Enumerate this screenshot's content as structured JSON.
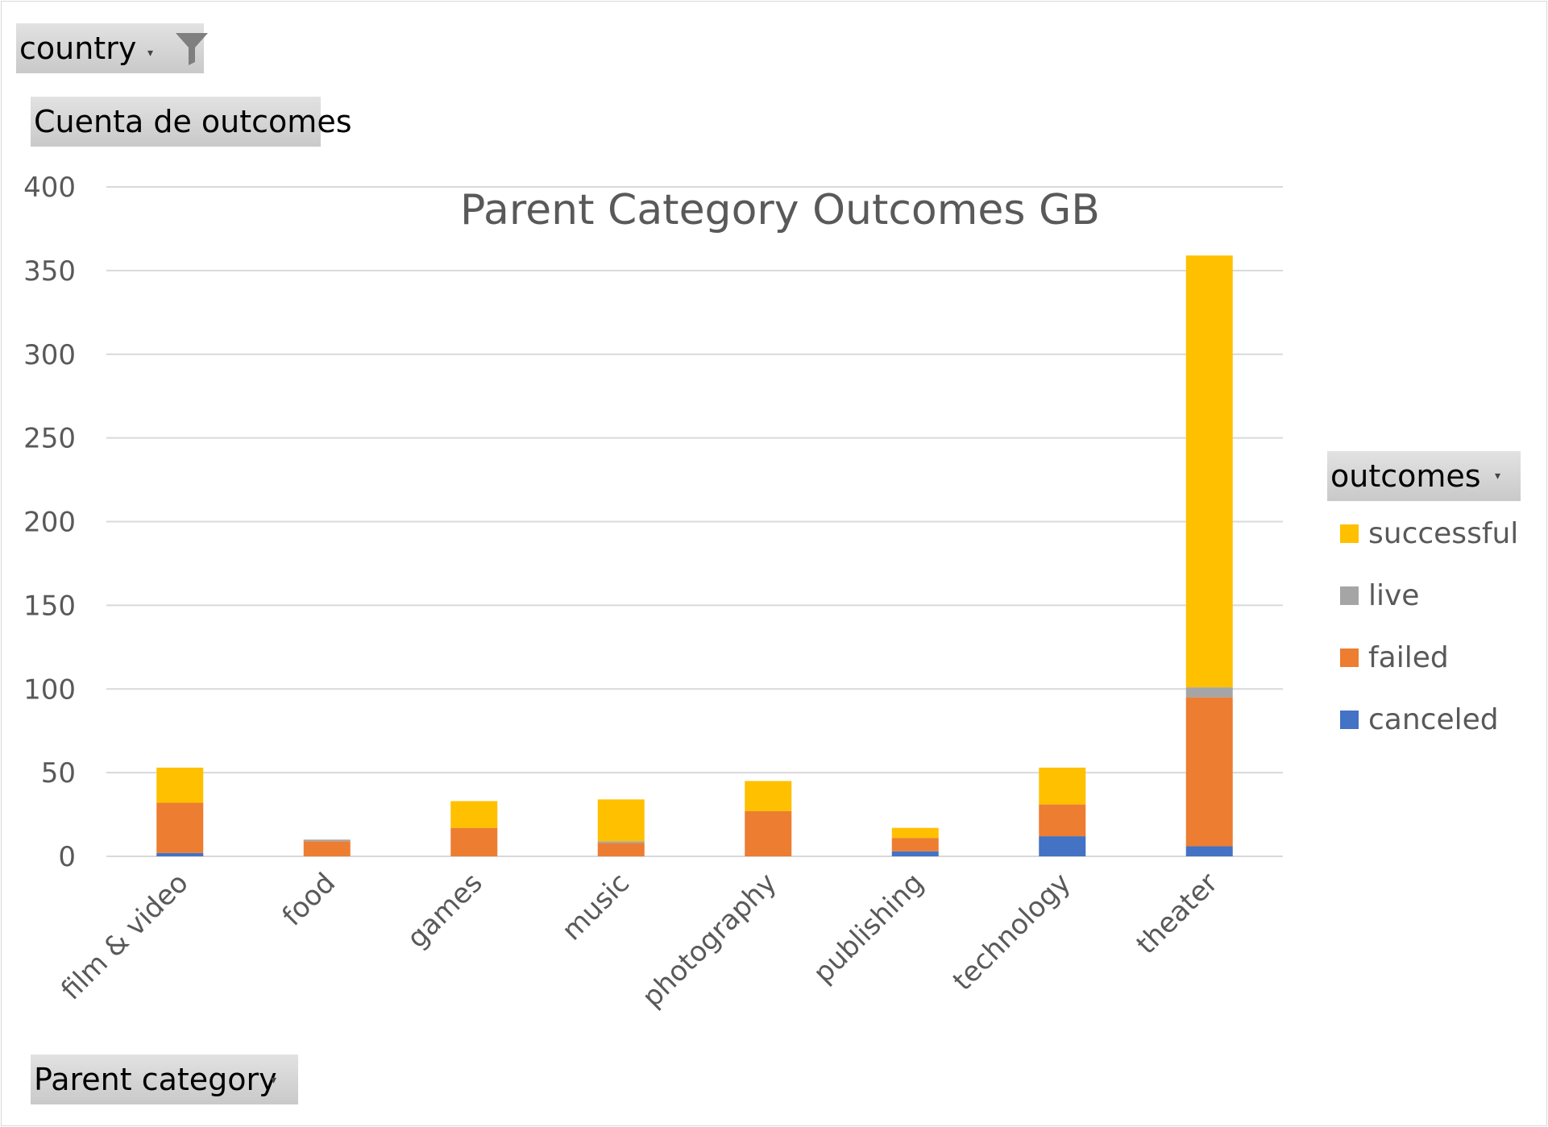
{
  "pivot": {
    "filter_field": "country",
    "value_field": "Cuenta de outcomes",
    "legend_field": "outcomes",
    "axis_field": "Parent category"
  },
  "chart_data": {
    "type": "bar",
    "stacked": true,
    "title": "Parent Category Outcomes GB",
    "xlabel": "",
    "ylabel": "",
    "categories": [
      "film & video",
      "food",
      "games",
      "music",
      "photography",
      "publishing",
      "technology",
      "theater"
    ],
    "series": [
      {
        "name": "canceled",
        "color": "#4472c4",
        "values": [
          2,
          0,
          0,
          0,
          0,
          3,
          12,
          6
        ]
      },
      {
        "name": "failed",
        "color": "#ed7d31",
        "values": [
          30,
          9,
          17,
          8,
          27,
          8,
          19,
          89
        ]
      },
      {
        "name": "live",
        "color": "#a5a5a5",
        "values": [
          0,
          1,
          0,
          1,
          0,
          0,
          0,
          6
        ]
      },
      {
        "name": "successful",
        "color": "#ffc000",
        "values": [
          21,
          0,
          16,
          25,
          18,
          6,
          22,
          258
        ]
      }
    ],
    "legend_order": [
      "successful",
      "live",
      "failed",
      "canceled"
    ],
    "yticks": [
      0,
      50,
      100,
      150,
      200,
      250,
      300,
      350,
      400
    ],
    "ylim": [
      0,
      400
    ],
    "grid": true,
    "legend_position": "right"
  },
  "colors": {
    "gridline": "#d9d9d9",
    "axis_text": "#595959",
    "pivot_button": "#d0d0d0"
  },
  "icons": {
    "filter": "funnel-icon",
    "dropdown": "dropdown-arrow-icon"
  }
}
